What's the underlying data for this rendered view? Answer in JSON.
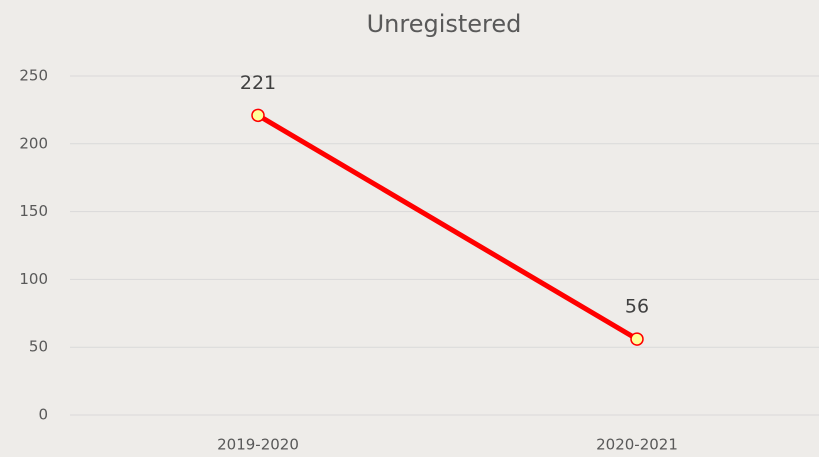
{
  "chart_data": {
    "type": "line",
    "title": "Unregistered",
    "categories": [
      "2019-2020",
      "2020-2021"
    ],
    "series": [
      {
        "name": "Unregistered",
        "color": "#ff0000",
        "marker_fill": "#ffff99",
        "values": [
          221,
          56
        ]
      }
    ],
    "ylim": [
      0,
      250
    ],
    "yticks": [
      0,
      50,
      100,
      150,
      200,
      250
    ],
    "grid": true,
    "data_labels": true
  }
}
